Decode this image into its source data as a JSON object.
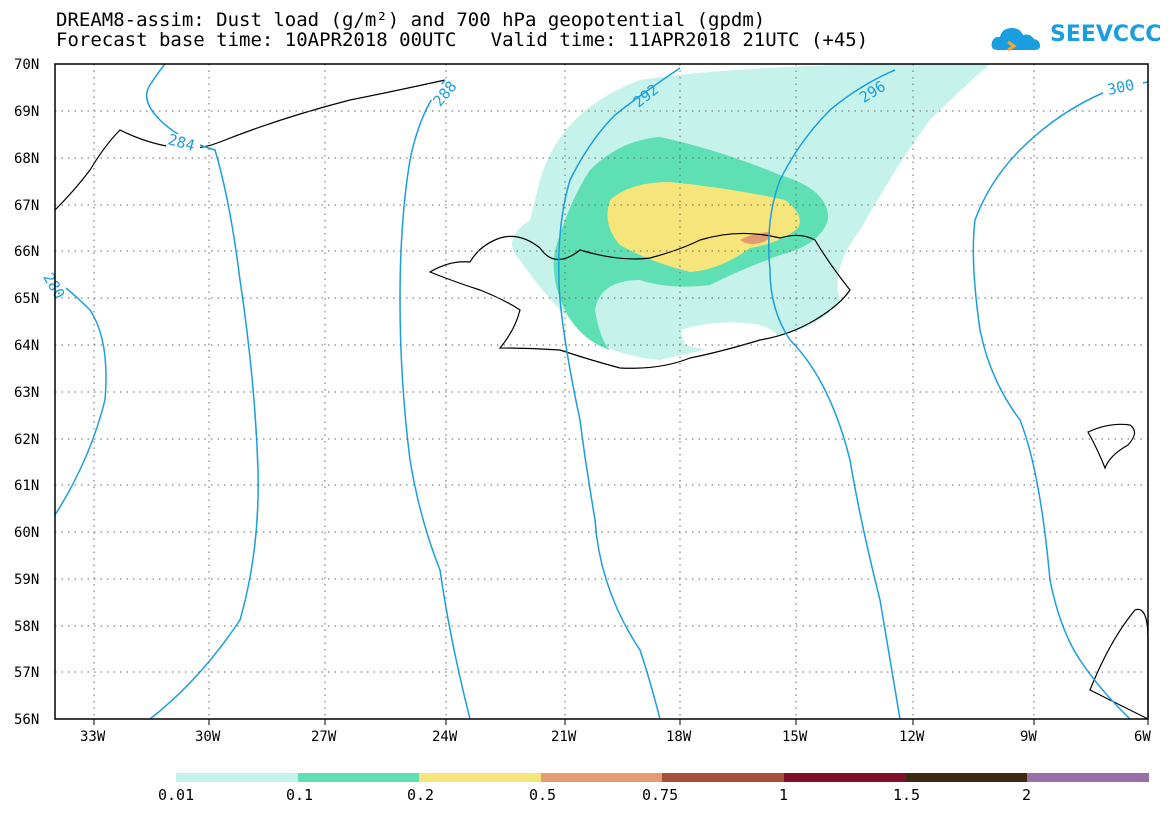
{
  "header": {
    "title_line1": "DREAM8-assim: Dust load (g/m²) and 700 hPa geopotential (gpdm)",
    "title_line2": "Forecast base time: 10APR2018 00UTC   Valid time: 11APR2018 21UTC (+45)"
  },
  "logo": {
    "text": "SEEVCCC",
    "icon": "cloud-icon",
    "color": "#1a9ee0"
  },
  "axes": {
    "lat_labels": [
      "70N",
      "69N",
      "68N",
      "67N",
      "66N",
      "65N",
      "64N",
      "63N",
      "62N",
      "61N",
      "60N",
      "59N",
      "58N",
      "57N",
      "56N"
    ],
    "lon_labels": [
      "33W",
      "30W",
      "27W",
      "24W",
      "21W",
      "18W",
      "15W",
      "12W",
      "9W",
      "6W"
    ]
  },
  "contours": {
    "color": "#1a9ee0",
    "labels": [
      "280",
      "284",
      "288",
      "292",
      "296",
      "300"
    ]
  },
  "colorbar": {
    "colors": [
      "#c5f2ea",
      "#5fe0b4",
      "#f6e57a",
      "#e59a6f",
      "#a9503a",
      "#7f0f2b",
      "#3d2a12",
      "#9a6fa8"
    ],
    "labels": [
      "0.01",
      "0.1",
      "0.2",
      "0.5",
      "0.75",
      "1",
      "1.5",
      "2"
    ]
  }
}
